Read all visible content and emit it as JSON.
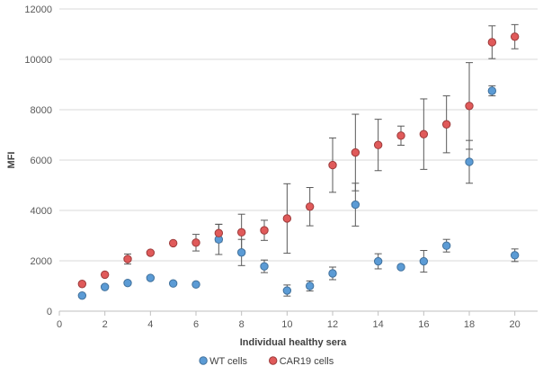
{
  "chart_data": {
    "type": "scatter",
    "xlabel": "Individual healthy sera",
    "ylabel": "MFI",
    "xlim": [
      0,
      21
    ],
    "ylim": [
      0,
      12000
    ],
    "x_ticks": [
      0,
      2,
      4,
      6,
      8,
      10,
      12,
      14,
      16,
      18,
      20
    ],
    "y_ticks": [
      0,
      2000,
      4000,
      6000,
      8000,
      10000,
      12000
    ],
    "grid": "horizontal",
    "legend_position": "bottom",
    "error_bars": true,
    "series": [
      {
        "name": "WT cells",
        "color": "#5b9bd5",
        "edge_color": "#41719c",
        "marker": "circle",
        "points": [
          {
            "x": 1,
            "y": 620,
            "err": 0
          },
          {
            "x": 2,
            "y": 960,
            "err": 0
          },
          {
            "x": 3,
            "y": 1120,
            "err": 0
          },
          {
            "x": 4,
            "y": 1320,
            "err": 0
          },
          {
            "x": 5,
            "y": 1100,
            "err": 0
          },
          {
            "x": 6,
            "y": 1060,
            "err": 0
          },
          {
            "x": 7,
            "y": 2850,
            "err": 600
          },
          {
            "x": 8,
            "y": 2330,
            "err": 520
          },
          {
            "x": 9,
            "y": 1780,
            "err": 250
          },
          {
            "x": 10,
            "y": 820,
            "err": 220
          },
          {
            "x": 11,
            "y": 1000,
            "err": 200
          },
          {
            "x": 12,
            "y": 1500,
            "err": 250
          },
          {
            "x": 13,
            "y": 4230,
            "err": 850
          },
          {
            "x": 14,
            "y": 1980,
            "err": 300
          },
          {
            "x": 15,
            "y": 1750,
            "err": 0
          },
          {
            "x": 16,
            "y": 1980,
            "err": 430
          },
          {
            "x": 17,
            "y": 2600,
            "err": 250
          },
          {
            "x": 18,
            "y": 5930,
            "err": 850
          },
          {
            "x": 19,
            "y": 8750,
            "err": 200
          },
          {
            "x": 20,
            "y": 2220,
            "err": 250
          }
        ]
      },
      {
        "name": "CAR19 cells",
        "color": "#e05a5a",
        "edge_color": "#9c3a3a",
        "marker": "circle",
        "points": [
          {
            "x": 1,
            "y": 1080,
            "err": 0
          },
          {
            "x": 2,
            "y": 1450,
            "err": 0
          },
          {
            "x": 3,
            "y": 2070,
            "err": 200
          },
          {
            "x": 4,
            "y": 2320,
            "err": 0
          },
          {
            "x": 5,
            "y": 2700,
            "err": 0
          },
          {
            "x": 6,
            "y": 2720,
            "err": 330
          },
          {
            "x": 7,
            "y": 3100,
            "err": 350
          },
          {
            "x": 8,
            "y": 3130,
            "err": 720
          },
          {
            "x": 9,
            "y": 3210,
            "err": 400
          },
          {
            "x": 10,
            "y": 3680,
            "err": 1380
          },
          {
            "x": 11,
            "y": 4150,
            "err": 760
          },
          {
            "x": 12,
            "y": 5800,
            "err": 1080
          },
          {
            "x": 13,
            "y": 6300,
            "err": 1520
          },
          {
            "x": 14,
            "y": 6600,
            "err": 1020
          },
          {
            "x": 15,
            "y": 6970,
            "err": 380
          },
          {
            "x": 16,
            "y": 7030,
            "err": 1400
          },
          {
            "x": 17,
            "y": 7420,
            "err": 1130
          },
          {
            "x": 18,
            "y": 8150,
            "err": 1720
          },
          {
            "x": 19,
            "y": 10680,
            "err": 650
          },
          {
            "x": 20,
            "y": 10900,
            "err": 480
          }
        ]
      }
    ]
  }
}
